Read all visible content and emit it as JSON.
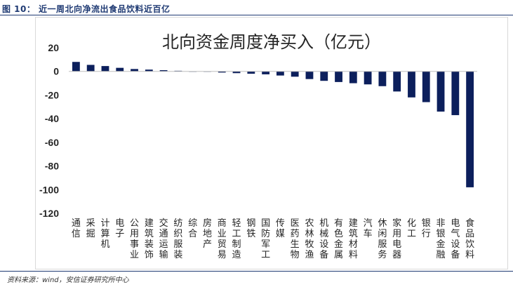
{
  "figure": {
    "caption": "图 10： 近一周北向净流出食品饮料近百亿",
    "source": "资料来源：wind，安信证券研究所中心"
  },
  "colors": {
    "bar": "#0c1f5c",
    "header_text": "#1f3a73",
    "axis": "#bfbfbf",
    "frame": "#d9d9d9"
  },
  "chart_data": {
    "type": "bar",
    "title": "北向资金周度净买入（亿元）",
    "xlabel": "",
    "ylabel": "",
    "ylim": [
      -120,
      20
    ],
    "yticks": [
      20,
      0,
      -20,
      -40,
      -60,
      -80,
      -100,
      -120
    ],
    "ytick_labels": [
      "20",
      "0",
      "-20",
      "-40",
      "-60",
      "-80",
      "-100",
      "-120"
    ],
    "grid": false,
    "legend": "none",
    "categories": [
      "通信",
      "采掘",
      "计算机",
      "电子",
      "公用事业",
      "建筑装饰",
      "交通运输",
      "纺织服装",
      "综合",
      "房地产",
      "商业贸易",
      "轻工制造",
      "钢铁",
      "国防军工",
      "传媒",
      "医药生物",
      "农林牧渔",
      "机械设备",
      "有色金属",
      "建筑材料",
      "汽车",
      "休闲服务",
      "家用电器",
      "化工",
      "银行",
      "非银金融",
      "电气设备",
      "食品饮料"
    ],
    "values": [
      8,
      5.5,
      4.5,
      3,
      2,
      1.5,
      1,
      0.5,
      0,
      -0.2,
      -1,
      -1.5,
      -2,
      -2.5,
      -3.5,
      -4.5,
      -6.5,
      -8,
      -9,
      -10,
      -11,
      -12.5,
      -17,
      -22,
      -26,
      -34,
      -37,
      -98
    ]
  }
}
